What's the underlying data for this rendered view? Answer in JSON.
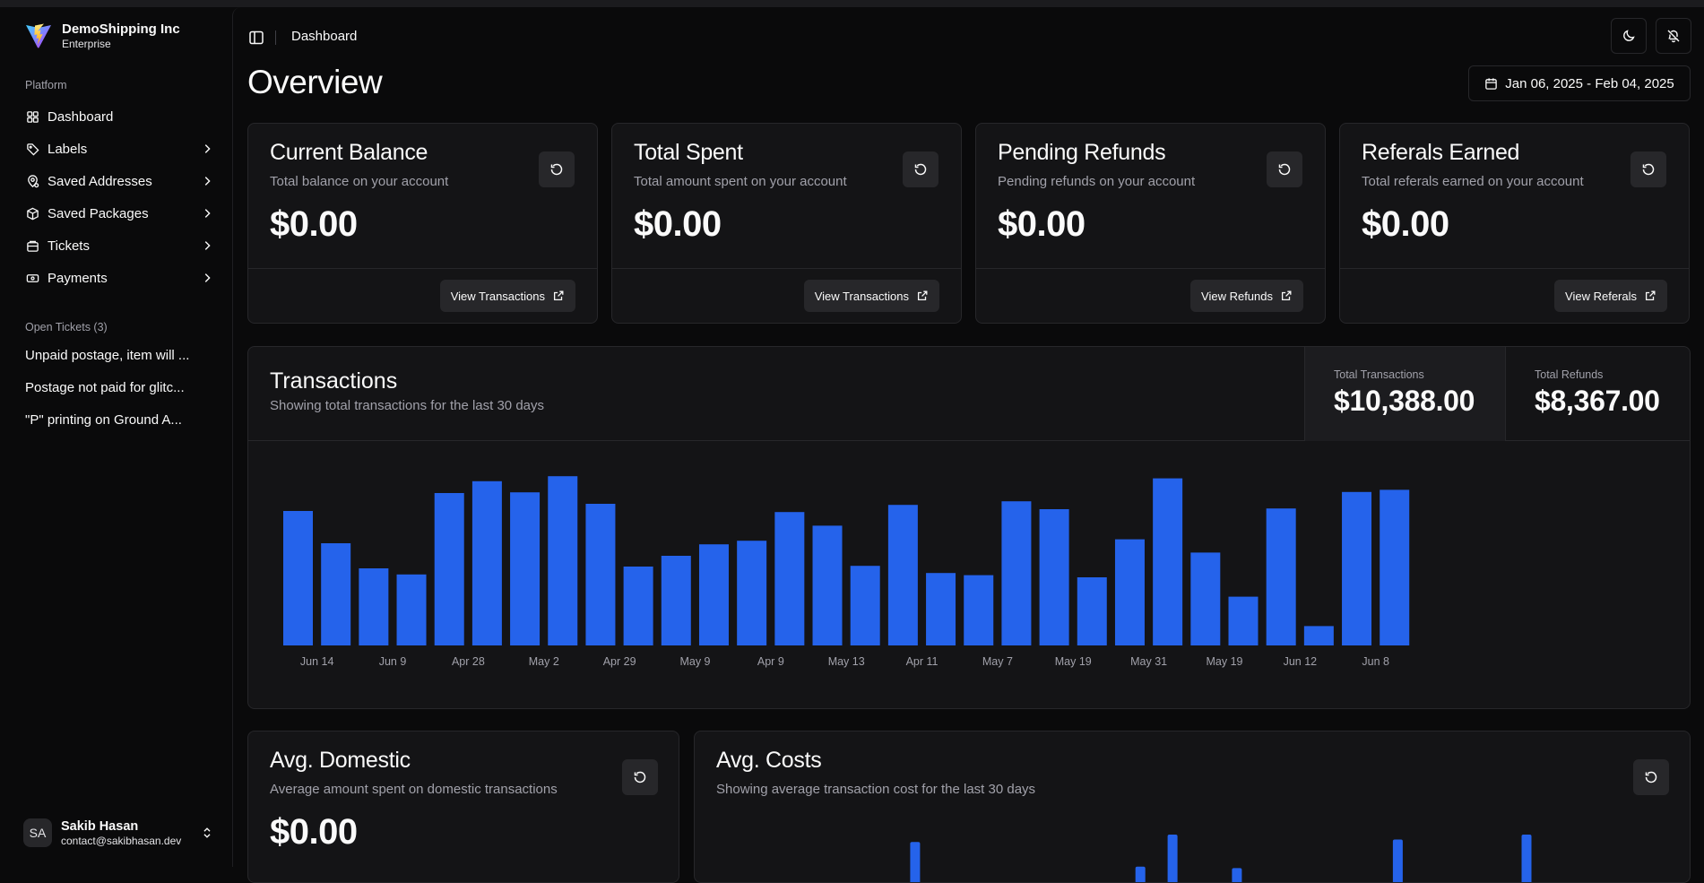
{
  "brand": {
    "name": "DemoShipping Inc",
    "plan": "Enterprise"
  },
  "sidebar": {
    "platform_label": "Platform",
    "items": [
      {
        "label": "Dashboard",
        "icon": "dashboard-icon",
        "has_children": false
      },
      {
        "label": "Labels",
        "icon": "tag-icon",
        "has_children": true
      },
      {
        "label": "Saved Addresses",
        "icon": "location-icon",
        "has_children": true
      },
      {
        "label": "Saved Packages",
        "icon": "package-icon",
        "has_children": true
      },
      {
        "label": "Tickets",
        "icon": "ticket-icon",
        "has_children": true
      },
      {
        "label": "Payments",
        "icon": "payment-icon",
        "has_children": true
      }
    ],
    "open_tickets_label": "Open Tickets (3)",
    "open_tickets": [
      "Unpaid postage, item will ...",
      "Postage not paid for glitc...",
      "\"P\" printing on Ground A..."
    ]
  },
  "user": {
    "initials": "SA",
    "name": "Sakib Hasan",
    "email": "contact@sakibhasan.dev"
  },
  "header": {
    "breadcrumb": "Dashboard"
  },
  "page": {
    "title": "Overview",
    "date_range": "Jan 06, 2025 - Feb 04, 2025"
  },
  "stat_cards": [
    {
      "title": "Current Balance",
      "desc": "Total balance on your account",
      "value": "$0.00",
      "button": "View Transactions"
    },
    {
      "title": "Total Spent",
      "desc": "Total amount spent on your account",
      "value": "$0.00",
      "button": "View Transactions"
    },
    {
      "title": "Pending Refunds",
      "desc": "Pending refunds on your account",
      "value": "$0.00",
      "button": "View Refunds"
    },
    {
      "title": "Referals Earned",
      "desc": "Total referals earned on your account",
      "value": "$0.00",
      "button": "View Referals"
    }
  ],
  "transactions": {
    "title": "Transactions",
    "desc": "Showing total transactions for the last 30 days",
    "total_transactions_label": "Total Transactions",
    "total_transactions": "$10,388.00",
    "total_refunds_label": "Total Refunds",
    "total_refunds": "$8,367.00"
  },
  "avg_domestic": {
    "title": "Avg. Domestic",
    "desc": "Average amount spent on domestic transactions",
    "value": "$0.00"
  },
  "avg_costs": {
    "title": "Avg. Costs",
    "desc": "Showing average transaction cost for the last 30 days"
  },
  "colors": {
    "accent": "#2563eb",
    "card": "#141416",
    "border": "#27272a",
    "muted": "#a1a1aa"
  },
  "chart_data": [
    {
      "type": "bar",
      "title": "Transactions",
      "tick_labels": [
        "Jun 14",
        "Jun 9",
        "Apr 28",
        "May 2",
        "Apr 29",
        "May 9",
        "Apr 9",
        "May 13",
        "Apr 11",
        "May 7",
        "May 19",
        "May 31",
        "May 19",
        "Jun 12",
        "Jun 8"
      ],
      "values": [
        375,
        285,
        215,
        198,
        425,
        458,
        427,
        472,
        395,
        220,
        250,
        282,
        292,
        372,
        334,
        222,
        392,
        202,
        196,
        402,
        380,
        190,
        296,
        466,
        259,
        136,
        382,
        54,
        428,
        434
      ],
      "ylim": [
        0,
        500
      ],
      "grid": false,
      "legend": "none"
    },
    {
      "type": "bar",
      "title": "Avg. Costs",
      "bars_visible": [
        {
          "index": 6,
          "value": 0.85
        },
        {
          "index": 13,
          "value": 0.35
        },
        {
          "index": 14,
          "value": 1.0
        },
        {
          "index": 16,
          "value": 0.32
        },
        {
          "index": 21,
          "value": 0.9
        },
        {
          "index": 25,
          "value": 1.0
        }
      ],
      "bar_count": 30,
      "grid": false
    }
  ]
}
